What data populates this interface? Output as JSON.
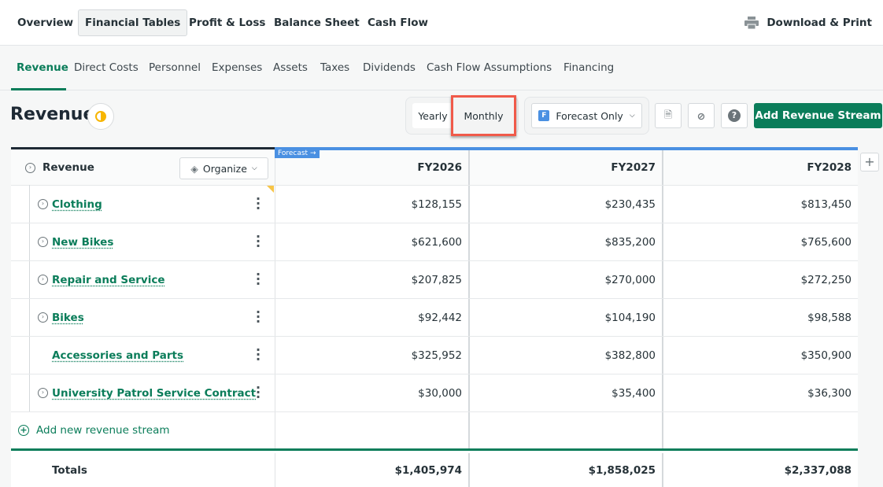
{
  "topnav": {
    "items": [
      "Overview",
      "Financial Tables",
      "Profit & Loss",
      "Balance Sheet",
      "Cash Flow"
    ],
    "download": "Download & Print"
  },
  "subnav": {
    "items": [
      "Revenue",
      "Direct Costs",
      "Personnel",
      "Expenses",
      "Assets",
      "Taxes",
      "Dividends",
      "Cash Flow Assumptions",
      "Financing"
    ]
  },
  "page": {
    "title": "Revenue"
  },
  "toolbar": {
    "yearly": "Yearly",
    "monthly": "Monthly",
    "forecast_badge": "F",
    "filter": "Forecast Only",
    "add": "Add Revenue Stream"
  },
  "table": {
    "forecast_tag": "Forecast →",
    "header": {
      "label": "Revenue",
      "organize": "Organize",
      "cols": [
        "FY2026",
        "FY2027",
        "FY2028"
      ]
    },
    "rows": [
      {
        "name": "Clothing",
        "values": [
          "$128,155",
          "$230,435",
          "$813,450"
        ]
      },
      {
        "name": "New Bikes",
        "values": [
          "$621,600",
          "$835,200",
          "$765,600"
        ]
      },
      {
        "name": "Repair and Service",
        "values": [
          "$207,825",
          "$270,000",
          "$272,250"
        ]
      },
      {
        "name": "Bikes",
        "values": [
          "$92,442",
          "$104,190",
          "$98,588"
        ]
      },
      {
        "name": "Accessories and Parts",
        "values": [
          "$325,952",
          "$382,800",
          "$350,900"
        ]
      },
      {
        "name": "University Patrol Service Contract",
        "values": [
          "$30,000",
          "$35,400",
          "$36,300"
        ]
      }
    ],
    "add_row": "Add new revenue stream",
    "totals": {
      "label": "Totals",
      "values": [
        "$1,405,974",
        "$1,858,025",
        "$2,337,088"
      ]
    }
  }
}
